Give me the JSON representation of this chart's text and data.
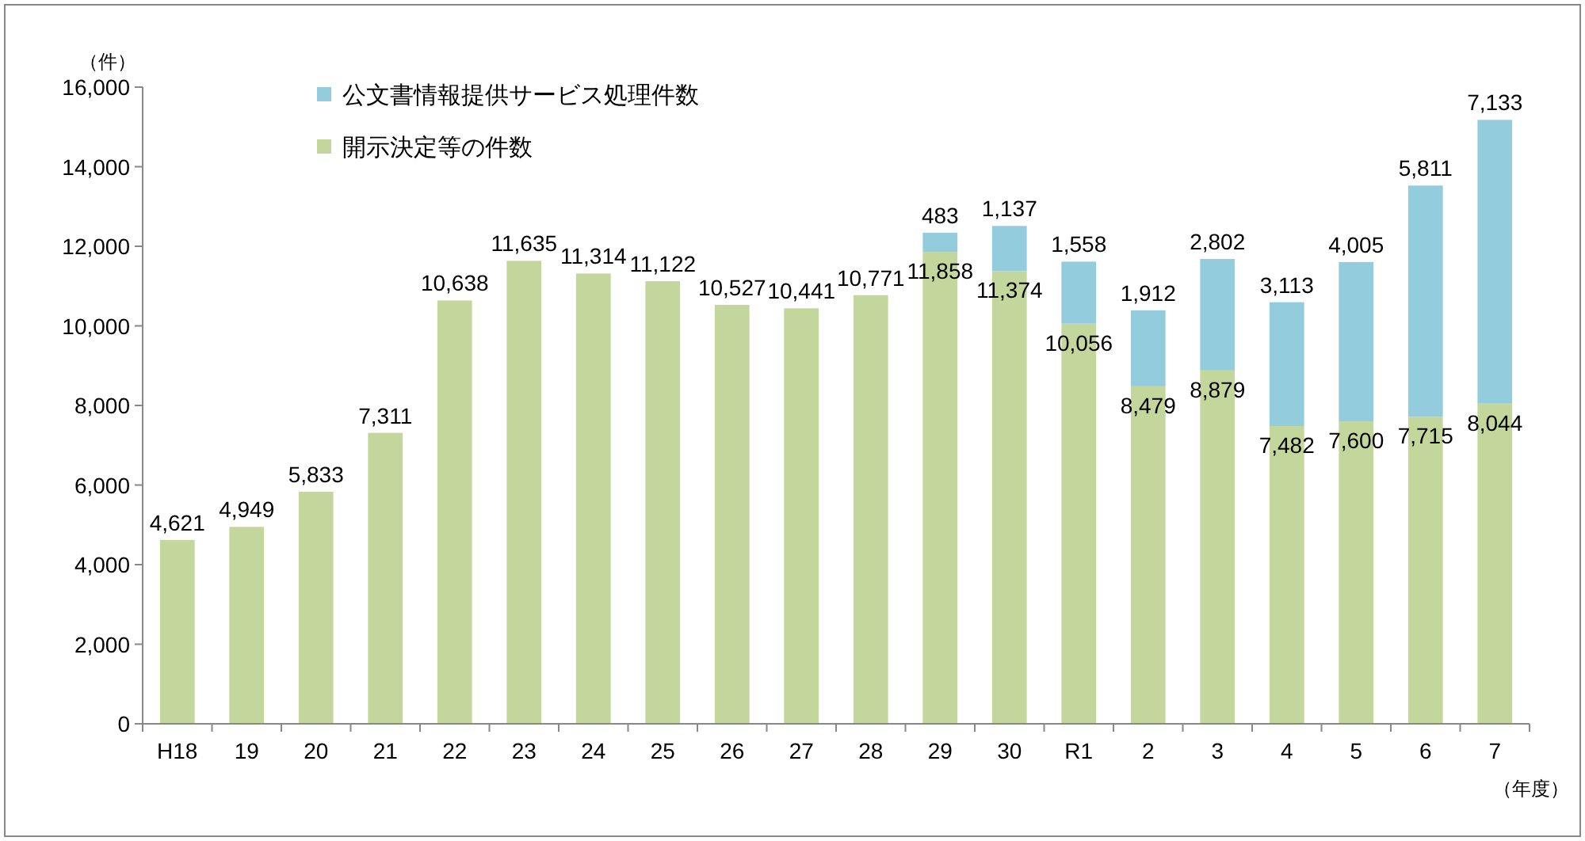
{
  "chart_data": {
    "type": "bar",
    "stacked": true,
    "ylabel": "（件）",
    "annotations": [
      "（年度）"
    ],
    "categories": [
      "H18",
      "19",
      "20",
      "21",
      "22",
      "23",
      "24",
      "25",
      "26",
      "27",
      "28",
      "29",
      "30",
      "R1",
      "2",
      "3",
      "4",
      "5",
      "6",
      "7"
    ],
    "series": [
      {
        "name": "開示決定等の件数",
        "color": "#c3d69b",
        "values": [
          4621,
          4949,
          5833,
          7311,
          10638,
          11635,
          11314,
          11122,
          10527,
          10441,
          10771,
          11858,
          11374,
          10056,
          8479,
          8879,
          7482,
          7600,
          7715,
          8044
        ],
        "value_labels": [
          "4,621",
          "4,949",
          "5,833",
          "7,311",
          "10,638",
          "11,635",
          "11,314",
          "11,122",
          "10,527",
          "10,441",
          "10,771",
          "11,858",
          "11,374",
          "10,056",
          "8,479",
          "8,879",
          "7,482",
          "7,600",
          "7,715",
          "8,044"
        ]
      },
      {
        "name": "公文書情報提供サービス処理件数",
        "color": "#93cddd",
        "values": [
          null,
          null,
          null,
          null,
          null,
          null,
          null,
          null,
          null,
          null,
          null,
          483,
          1137,
          1558,
          1912,
          2802,
          3113,
          4005,
          5811,
          7133
        ],
        "value_labels": [
          null,
          null,
          null,
          null,
          null,
          null,
          null,
          null,
          null,
          null,
          null,
          "483",
          "1,137",
          "1,558",
          "1,912",
          "2,802",
          "3,113",
          "4,005",
          "5,811",
          "7,133"
        ]
      }
    ],
    "ylim": [
      0,
      16000
    ],
    "yticks": [
      0,
      {
        "value": 2000,
        "label": "2,000"
      },
      {
        "value": 4000,
        "label": "4,000"
      },
      {
        "value": 6000,
        "label": "6,000"
      },
      {
        "value": 8000,
        "label": "8,000"
      },
      {
        "value": 10000,
        "label": "10,000"
      },
      {
        "value": 12000,
        "label": "12,000"
      },
      {
        "value": 14000,
        "label": "14,000"
      },
      {
        "value": 16000,
        "label": "16,000"
      }
    ],
    "legend": "top left",
    "grid": false
  }
}
